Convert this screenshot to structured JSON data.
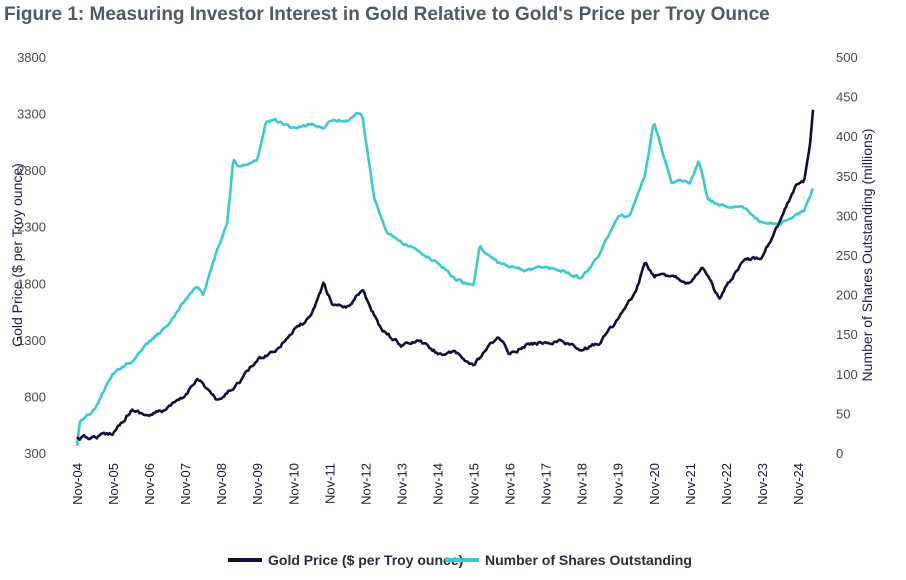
{
  "title": "Figure 1: Measuring Investor Interest in Gold Relative to Gold's Price per Troy Ounce",
  "chart_data": {
    "type": "line",
    "title": "Figure 1: Measuring Investor Interest in Gold Relative to Gold's Price per Troy Ounce",
    "xlabel": "",
    "ylabel": "Gold Price ($ per Troy ounce)",
    "ylabel_right": "Number of Shares Outstanding (millions)",
    "ylim": [
      300,
      3800
    ],
    "ylim_right": [
      0,
      500
    ],
    "y_ticks": [
      300,
      800,
      1300,
      1800,
      2300,
      2800,
      3300,
      3800
    ],
    "y_ticks_right": [
      0,
      50,
      100,
      150,
      200,
      250,
      300,
      350,
      400,
      450,
      500
    ],
    "x_ticks": [
      "Nov-04",
      "Nov-05",
      "Nov-06",
      "Nov-07",
      "Nov-08",
      "Nov-09",
      "Nov-10",
      "Nov-11",
      "Nov-12",
      "Nov-13",
      "Nov-14",
      "Nov-15",
      "Nov-16",
      "Nov-17",
      "Nov-18",
      "Nov-19",
      "Nov-20",
      "Nov-21",
      "Nov-22",
      "Nov-23",
      "Nov-24"
    ],
    "grid": false,
    "legend_position": "bottom-center",
    "series": [
      {
        "name": "Gold Price ($ per Troy ounce)",
        "axis": "left",
        "color": "#0f0f3d",
        "x": [
          "2004-11",
          "2005-05",
          "2005-11",
          "2006-05",
          "2006-11",
          "2007-05",
          "2007-11",
          "2008-03",
          "2008-10",
          "2009-05",
          "2009-11",
          "2010-05",
          "2010-11",
          "2011-05",
          "2011-09",
          "2011-12",
          "2012-05",
          "2012-10",
          "2013-04",
          "2013-11",
          "2014-05",
          "2014-11",
          "2015-05",
          "2015-11",
          "2016-07",
          "2016-11",
          "2017-05",
          "2017-11",
          "2018-05",
          "2018-11",
          "2019-05",
          "2019-11",
          "2020-05",
          "2020-08",
          "2020-11",
          "2021-05",
          "2021-11",
          "2022-03",
          "2022-09",
          "2022-11",
          "2023-05",
          "2023-11",
          "2024-05",
          "2024-10",
          "2025-01",
          "2025-03",
          "2025-04"
        ],
        "y": [
          430,
          440,
          480,
          680,
          630,
          690,
          800,
          970,
          750,
          930,
          1120,
          1210,
          1380,
          1500,
          1800,
          1620,
          1590,
          1750,
          1400,
          1250,
          1290,
          1180,
          1180,
          1070,
          1330,
          1180,
          1260,
          1280,
          1290,
          1200,
          1280,
          1480,
          1720,
          1980,
          1860,
          1880,
          1800,
          1950,
          1650,
          1760,
          1990,
          2040,
          2350,
          2650,
          2700,
          3020,
          3350
        ]
      },
      {
        "name": "Number of Shares Outstanding",
        "axis": "right",
        "color": "#3cc8d2",
        "x": [
          "2004-11",
          "2004-12",
          "2005-05",
          "2005-11",
          "2006-05",
          "2006-11",
          "2007-05",
          "2007-11",
          "2008-03",
          "2008-05",
          "2008-10",
          "2009-01",
          "2009-03",
          "2009-05",
          "2009-11",
          "2010-02",
          "2010-05",
          "2010-11",
          "2011-05",
          "2011-09",
          "2011-12",
          "2012-05",
          "2012-08",
          "2012-10",
          "2013-02",
          "2013-06",
          "2013-11",
          "2014-05",
          "2014-11",
          "2015-05",
          "2015-11",
          "2016-01",
          "2016-07",
          "2016-11",
          "2017-05",
          "2017-11",
          "2018-05",
          "2018-11",
          "2019-05",
          "2019-11",
          "2020-03",
          "2020-08",
          "2020-11",
          "2021-05",
          "2021-07",
          "2021-11",
          "2022-02",
          "2022-05",
          "2022-11",
          "2023-05",
          "2023-11",
          "2024-05",
          "2024-10",
          "2025-01",
          "2025-04"
        ],
        "y": [
          10,
          40,
          55,
          100,
          115,
          140,
          160,
          195,
          210,
          200,
          260,
          290,
          370,
          360,
          370,
          420,
          420,
          410,
          415,
          410,
          420,
          420,
          430,
          425,
          320,
          280,
          265,
          255,
          240,
          220,
          210,
          260,
          240,
          235,
          230,
          235,
          230,
          220,
          250,
          300,
          300,
          350,
          420,
          340,
          345,
          340,
          370,
          320,
          310,
          310,
          290,
          290,
          300,
          305,
          335
        ]
      }
    ]
  }
}
